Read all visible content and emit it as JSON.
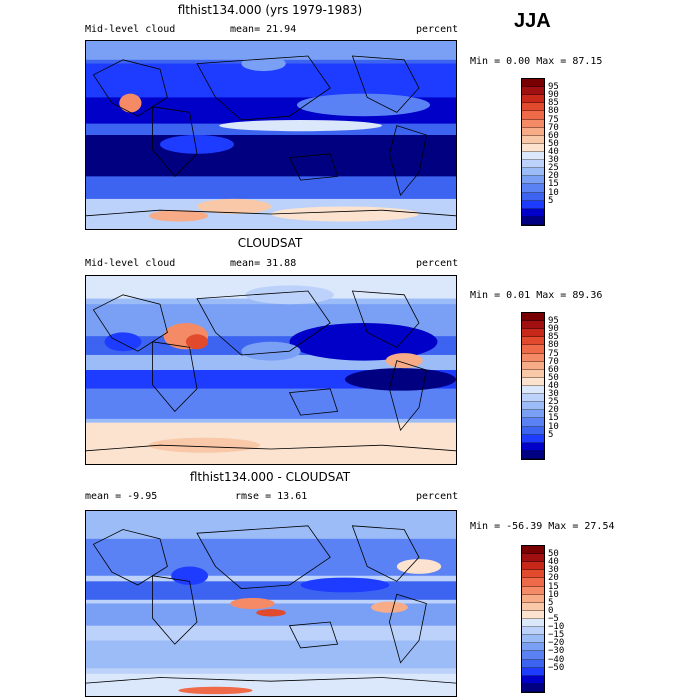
{
  "season": "JJA",
  "palettes": {
    "abs": [
      "#000080",
      "#0000c8",
      "#1e3cff",
      "#3c64f0",
      "#5a82f5",
      "#7aa0f5",
      "#9bbcf7",
      "#bcd2fa",
      "#dbe7fb",
      "#fbe3cf",
      "#f8c8a8",
      "#f7ab86",
      "#f48b66",
      "#ee6a48",
      "#e24a2e",
      "#c8281a",
      "#a01010",
      "#780000"
    ],
    "diff": [
      "#000080",
      "#0000c8",
      "#1e3cff",
      "#3c64f0",
      "#5a82f5",
      "#7aa0f5",
      "#9bbcf7",
      "#bcd2fa",
      "#dbe7fb",
      "#fbe3cf",
      "#f8c8a8",
      "#f7ab86",
      "#f48b66",
      "#ee6a48",
      "#e24a2e",
      "#c8281a",
      "#a01010",
      "#780000"
    ]
  },
  "panels": [
    {
      "title": "flthist134.000 (yrs 1979-1983)",
      "left_label": "Mid-level cloud",
      "center_label": "mean=  21.94",
      "right_label": "percent",
      "minmax": "Min =   0.00 Max =  87.15",
      "scale": "abs",
      "ticks": [
        "95",
        "90",
        "85",
        "80",
        "75",
        "70",
        "60",
        "50",
        "40",
        "30",
        "25",
        "20",
        "15",
        "10",
        "5"
      ]
    },
    {
      "title": "CLOUDSAT",
      "left_label": "Mid-level cloud",
      "center_label": "mean=  31.88",
      "right_label": "percent",
      "minmax": "Min =  0.01 Max =  89.36",
      "scale": "abs",
      "ticks": [
        "95",
        "90",
        "85",
        "80",
        "75",
        "70",
        "60",
        "50",
        "40",
        "30",
        "25",
        "20",
        "15",
        "10",
        "5"
      ]
    },
    {
      "title": "flthist134.000 - CLOUDSAT",
      "left_label": "mean =   -9.95",
      "center_label": "rmse =  13.61",
      "right_label": "percent",
      "minmax": "Min = -56.39 Max =  27.54",
      "scale": "diff",
      "ticks": [
        "50",
        "40",
        "30",
        "20",
        "15",
        "10",
        "5",
        "0",
        "−5",
        "−10",
        "−15",
        "−20",
        "−30",
        "−40",
        "−50"
      ]
    }
  ]
}
